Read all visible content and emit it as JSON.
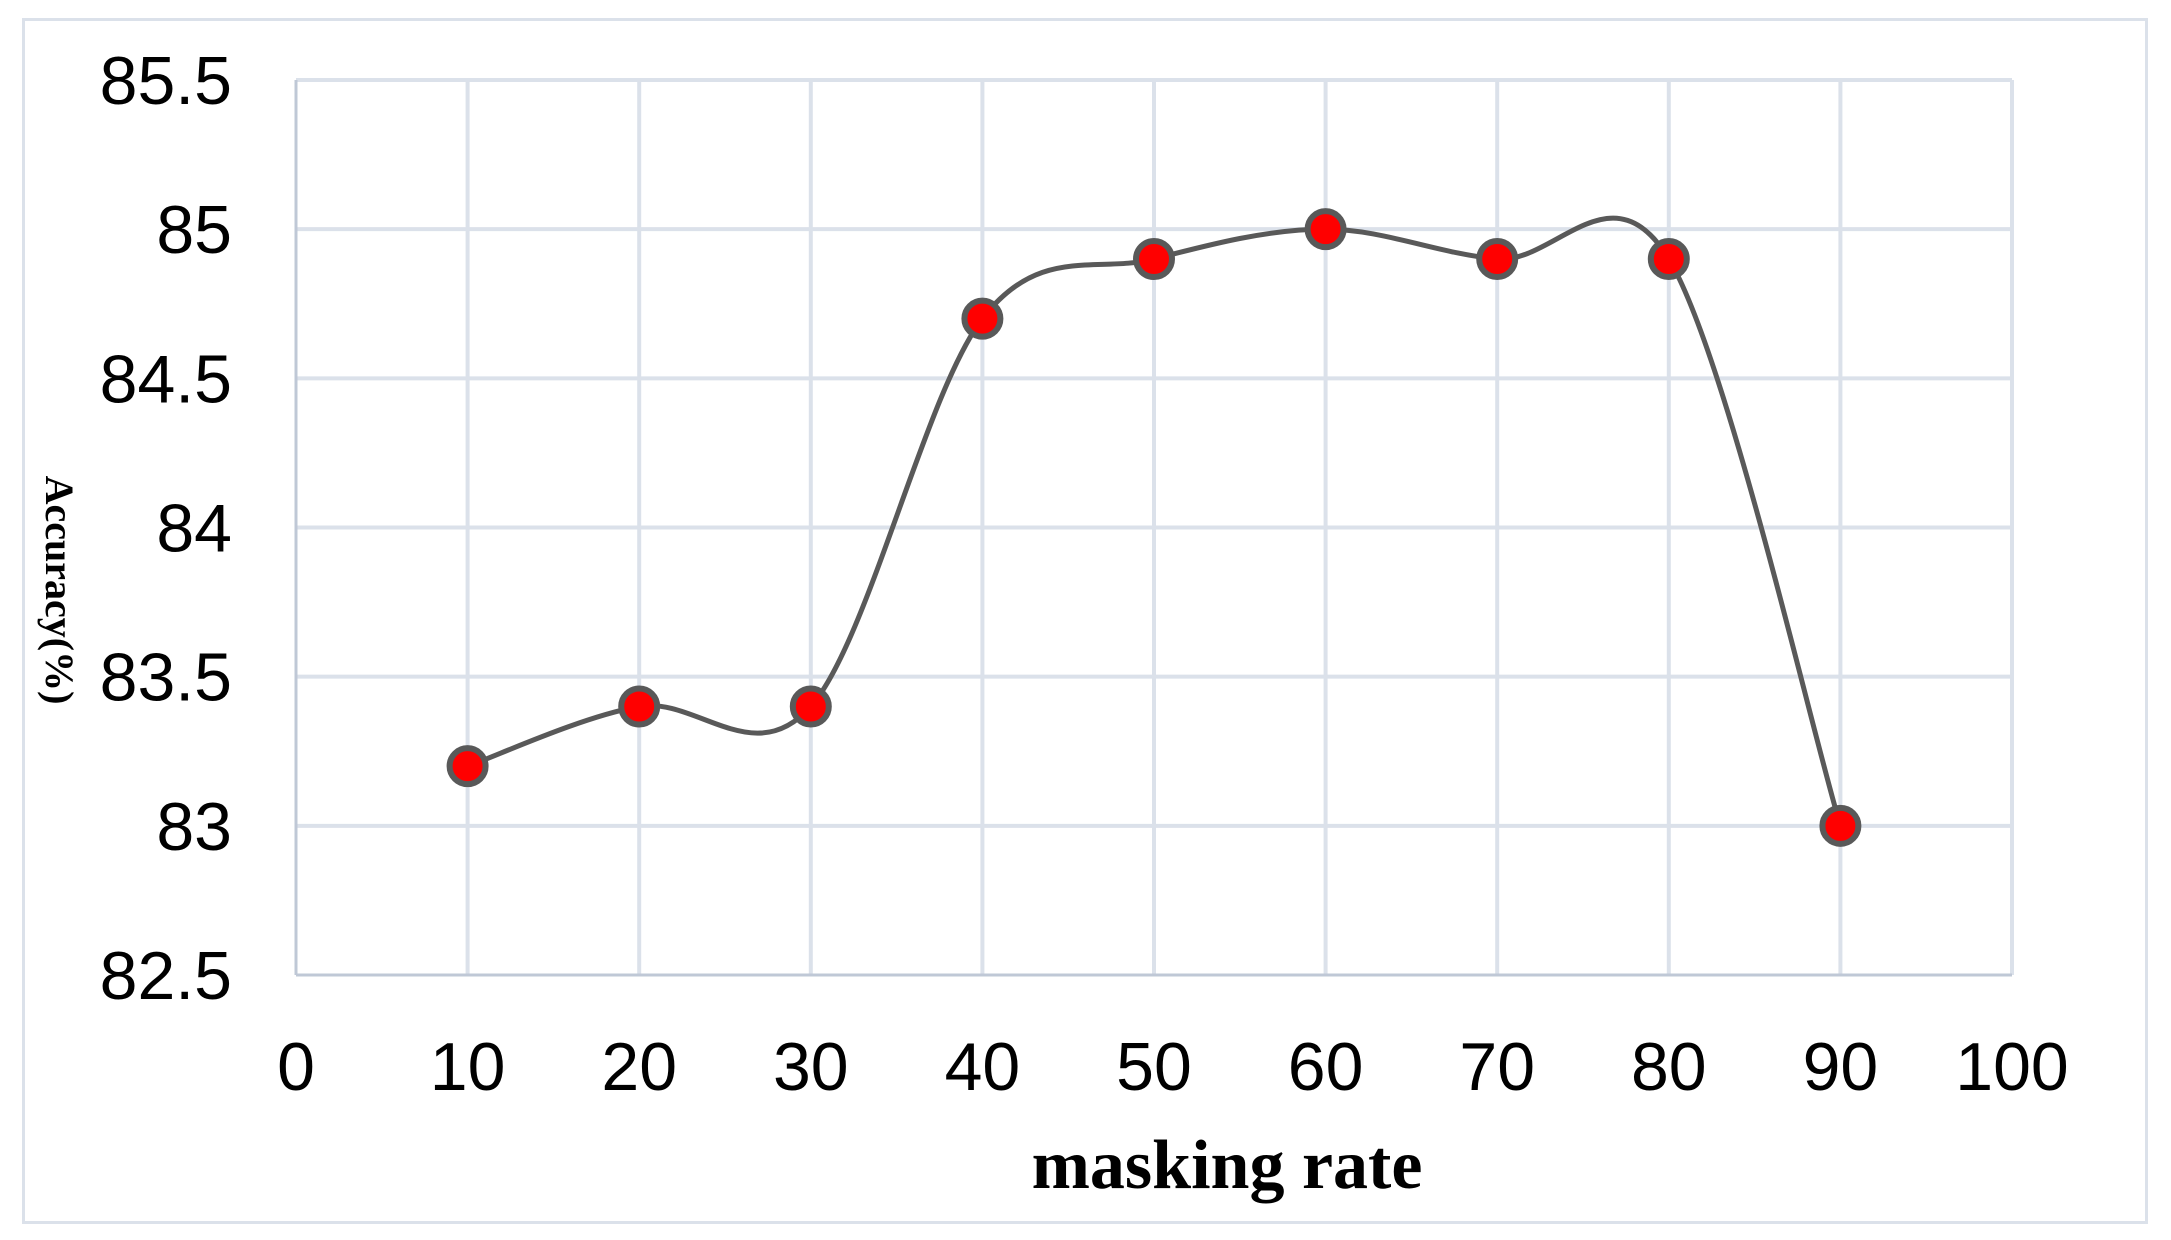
{
  "chart_data": {
    "type": "line",
    "xlabel": "masking rate",
    "ylabel": "Accuracy(%)",
    "xlim": [
      0,
      100
    ],
    "ylim": [
      82.5,
      85.5
    ],
    "xticks": [
      "0",
      "10",
      "20",
      "30",
      "40",
      "50",
      "60",
      "70",
      "80",
      "90",
      "100"
    ],
    "yticks": [
      "82.5",
      "83",
      "83.5",
      "84",
      "84.5",
      "85",
      "85.5"
    ],
    "grid": true,
    "smooth": true,
    "series": [
      {
        "x": [
          10,
          20,
          30,
          40,
          50,
          60,
          70,
          80,
          90
        ],
        "y": [
          83.2,
          83.4,
          83.4,
          84.7,
          84.9,
          85.0,
          84.9,
          84.9,
          83.0
        ]
      }
    ],
    "colors": {
      "line": "#595959",
      "marker_fill": "#ff0000",
      "marker_stroke": "#595959",
      "grid": "#dbe1ea"
    }
  }
}
